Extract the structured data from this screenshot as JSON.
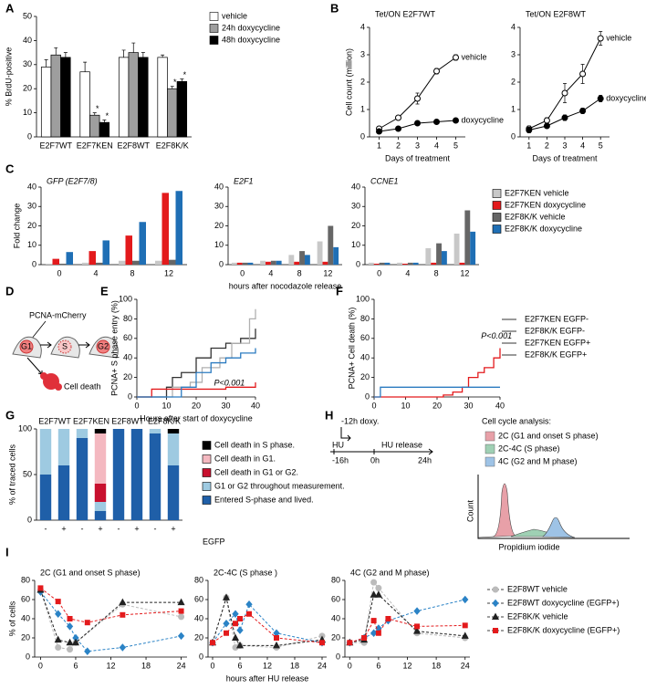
{
  "panel_labels": [
    "A",
    "B",
    "C",
    "D",
    "E",
    "F",
    "G",
    "H",
    "I"
  ],
  "diagrams": {
    "D": {
      "title": "PCNA-mCherry",
      "phases": [
        "G1",
        "S",
        "G2"
      ],
      "death": "Cell death"
    },
    "H": {
      "doxy": "-12h doxy.",
      "hu": "HU",
      "start": "-16h",
      "zero": "0h",
      "release": "HU release",
      "end": "24h",
      "analysis_title": "Cell cycle analysis:",
      "gates": [
        {
          "label": "2C (G1 and onset S phase)",
          "color": "#e8a0a8"
        },
        {
          "label": "2C-4C (S phase)",
          "color": "#9fd0b4"
        },
        {
          "label": "4C (G2 and M phase)",
          "color": "#9ec3e6"
        }
      ],
      "ylabel": "Count",
      "xlabel": "Propidium iodide"
    }
  },
  "chart_data": [
    {
      "type": "bar",
      "ylabel": "% BrdU-positive",
      "categories": [
        "E2F7WT",
        "E2F7KEN",
        "E2F8WT",
        "E2F8K/K"
      ],
      "ylim": [
        0,
        50
      ],
      "yticks": [
        0,
        10,
        20,
        30,
        40,
        50
      ],
      "legend": true,
      "series": [
        {
          "name": "vehicle",
          "color": "#ffffff",
          "values": [
            29,
            27,
            33,
            33
          ],
          "errors": [
            3,
            4,
            3,
            1
          ]
        },
        {
          "name": "24h doxycycline",
          "color": "#9e9e9e",
          "values": [
            34,
            9,
            35,
            20
          ],
          "errors": [
            3,
            1,
            4,
            1
          ],
          "marks": [
            null,
            "*",
            null,
            "*"
          ]
        },
        {
          "name": "48h doxycycline",
          "color": "#000000",
          "values": [
            33,
            6,
            33,
            23
          ],
          "errors": [
            2,
            1,
            2,
            1
          ],
          "marks": [
            null,
            "*",
            null,
            "*"
          ]
        }
      ]
    },
    {
      "type": "line",
      "title": "Tet/ON E2F7WT",
      "ylabel": "Cell count (million)",
      "xlabel": "Days of treatment",
      "x": [
        1,
        2,
        3,
        4,
        5
      ],
      "xlim": [
        0.5,
        5.5
      ],
      "xticks": [
        1,
        2,
        3,
        4,
        5
      ],
      "ylim": [
        0,
        4
      ],
      "yticks": [
        0,
        1,
        2,
        3,
        4
      ],
      "legend": "end",
      "series": [
        {
          "name": "vehicle",
          "color": "#000000",
          "marker": "open-circle",
          "values": [
            0.3,
            0.7,
            1.4,
            2.4,
            2.9
          ],
          "errors": [
            0.05,
            0.05,
            0.2,
            0.1,
            0.1
          ]
        },
        {
          "name": "doxycycline",
          "color": "#000000",
          "marker": "circle",
          "values": [
            0.2,
            0.3,
            0.5,
            0.55,
            0.6
          ],
          "errors": [
            0.02,
            0.03,
            0.05,
            0.05,
            0.05
          ]
        }
      ]
    },
    {
      "type": "line",
      "title": "Tet/ON E2F8WT",
      "xlabel": "Days of treatment",
      "x": [
        1,
        2,
        3,
        4,
        5
      ],
      "xlim": [
        0.5,
        5.5
      ],
      "xticks": [
        1,
        2,
        3,
        4,
        5
      ],
      "ylim": [
        0,
        4
      ],
      "yticks": [
        0,
        1,
        2,
        3,
        4
      ],
      "legend": "end",
      "series": [
        {
          "name": "vehicle",
          "color": "#000000",
          "marker": "open-circle",
          "values": [
            0.3,
            0.6,
            1.6,
            2.3,
            3.6
          ],
          "errors": [
            0.1,
            0.1,
            0.35,
            0.35,
            0.25
          ]
        },
        {
          "name": "doxycycline",
          "color": "#000000",
          "marker": "circle",
          "values": [
            0.25,
            0.4,
            0.7,
            0.95,
            1.4
          ],
          "errors": [
            0.1,
            0.05,
            0.1,
            0.1,
            0.12
          ]
        }
      ]
    },
    {
      "type": "bar",
      "title": "GFP (E2F7/8)",
      "ylabel": "Fold change",
      "categories": [
        "0",
        "4",
        "8",
        "12"
      ],
      "ylim": [
        0,
        40
      ],
      "yticks": [
        0,
        10,
        20,
        30,
        40
      ],
      "series": [
        {
          "color": "#c8c8c8",
          "values": [
            0.5,
            1,
            2,
            2
          ]
        },
        {
          "color": "#e31a1c",
          "values": [
            3,
            7,
            15,
            37
          ]
        },
        {
          "color": "#666666",
          "values": [
            0.5,
            1,
            2,
            2.5
          ]
        },
        {
          "color": "#1f6fb5",
          "values": [
            6.5,
            12.5,
            22,
            38
          ]
        }
      ]
    },
    {
      "type": "bar",
      "title": "E2F1",
      "xlabel": "hours after nocodazole release",
      "categories": [
        "0",
        "4",
        "8",
        "12"
      ],
      "ylim": [
        0,
        40
      ],
      "yticks": [
        0,
        10,
        20,
        30,
        40
      ],
      "series": [
        {
          "color": "#c8c8c8",
          "values": [
            1,
            2,
            5,
            12
          ]
        },
        {
          "color": "#e31a1c",
          "values": [
            1,
            1.5,
            1.5,
            1.5
          ]
        },
        {
          "color": "#666666",
          "values": [
            1,
            2,
            7,
            20
          ]
        },
        {
          "color": "#1f6fb5",
          "values": [
            1,
            2,
            5,
            9
          ]
        }
      ]
    },
    {
      "type": "bar",
      "title": "CCNE1",
      "categories": [
        "0",
        "4",
        "8",
        "12"
      ],
      "ylim": [
        0,
        40
      ],
      "yticks": [
        0,
        10,
        20,
        30,
        40
      ],
      "legend": true,
      "series": [
        {
          "name": "E2F7KEN vehicle",
          "color": "#c8c8c8",
          "values": [
            1,
            1,
            8.5,
            16
          ]
        },
        {
          "name": "E2F7KEN doxycycline",
          "color": "#e31a1c",
          "values": [
            0.5,
            0.5,
            1,
            1
          ]
        },
        {
          "name": "E2F8K/K vehicle",
          "color": "#666666",
          "values": [
            1,
            1,
            11,
            28
          ]
        },
        {
          "name": "E2F8K/K doxycycline",
          "color": "#1f6fb5",
          "values": [
            1,
            1,
            7,
            17
          ]
        }
      ]
    },
    {
      "type": "step",
      "ylabel": "PCNA+ S phase entry (%)",
      "xlabel": "Hours after start of doxycycline",
      "xlim": [
        0,
        40
      ],
      "xticks": [
        0,
        10,
        20,
        30,
        40
      ],
      "ylim": [
        0,
        100
      ],
      "yticks": [
        0,
        20,
        40,
        60,
        80,
        100
      ],
      "legend": true,
      "annotation": "P<0.001",
      "annotation_color": "#e31a1c",
      "series": [
        {
          "name": "E2F7KEN EGFP-",
          "color": "#333333",
          "x": [
            0,
            5,
            10,
            12,
            15,
            20,
            25,
            30,
            35,
            40
          ],
          "values": [
            0,
            0,
            10,
            20,
            25,
            40,
            50,
            55,
            60,
            70
          ]
        },
        {
          "name": "E2F8K/K EGFP-",
          "color": "#b0b0b0",
          "x": [
            0,
            10,
            12,
            18,
            22,
            28,
            32,
            38,
            40
          ],
          "values": [
            0,
            0,
            10,
            15,
            30,
            40,
            55,
            80,
            90
          ]
        },
        {
          "name": "E2F7KEN EGFP+",
          "color": "#e31a1c",
          "x": [
            0,
            5,
            30,
            40
          ],
          "values": [
            0,
            8,
            10,
            15
          ]
        },
        {
          "name": "E2F8K/K EGFP+",
          "color": "#2b7bc0",
          "x": [
            0,
            10,
            15,
            20,
            25,
            30,
            35,
            40
          ],
          "values": [
            0,
            0,
            10,
            25,
            35,
            40,
            45,
            50
          ]
        }
      ]
    },
    {
      "type": "step",
      "ylabel": "PCNA+ Cell death (%)",
      "xlim": [
        0,
        40
      ],
      "xticks": [
        0,
        10,
        20,
        30,
        40
      ],
      "ylim": [
        0,
        100
      ],
      "yticks": [
        0,
        20,
        40,
        60,
        80,
        100
      ],
      "annotation": "P<0.001",
      "annotation_color": "#e31a1c",
      "series": [
        {
          "color": "#e31a1c",
          "x": [
            0,
            22,
            25,
            28,
            30,
            33,
            35,
            38,
            40
          ],
          "values": [
            0,
            2,
            5,
            10,
            20,
            25,
            30,
            40,
            50
          ]
        },
        {
          "color": "#2b7bc0",
          "x": [
            0,
            2,
            40
          ],
          "values": [
            0,
            10,
            10
          ]
        }
      ]
    },
    {
      "type": "stacked_bar",
      "ylabel": "% of traced cells",
      "xlabel": "EGFP",
      "groups": [
        "E2F7WT",
        "E2F7KEN",
        "E2F8WT",
        "E2F8K/K"
      ],
      "categories": [
        "-",
        "+",
        "-",
        "+",
        "-",
        "+",
        "-",
        "+"
      ],
      "ylim": [
        0,
        100
      ],
      "yticks": [
        0,
        50,
        100
      ],
      "legend": true,
      "series": [
        {
          "name": "Cell death in S phase.",
          "color": "#000000",
          "values": [
            0,
            0,
            0,
            5,
            0,
            0,
            0,
            5
          ]
        },
        {
          "name": "Cell death in G1.",
          "color": "#f4b8c0",
          "values": [
            0,
            0,
            0,
            55,
            0,
            0,
            0,
            0
          ]
        },
        {
          "name": "Cell death in G1 or G2.",
          "color": "#c8102e",
          "values": [
            0,
            0,
            0,
            20,
            0,
            0,
            0,
            0
          ]
        },
        {
          "name": "G1 or G2 throughout measurement.",
          "color": "#9ecae1",
          "values": [
            50,
            40,
            10,
            10,
            0,
            0,
            5,
            35
          ]
        },
        {
          "name": "Entered S-phase and lived.",
          "color": "#1f5fa8",
          "values": [
            50,
            60,
            90,
            10,
            100,
            100,
            95,
            60
          ]
        }
      ]
    },
    {
      "type": "line",
      "title": "2C (G1 and onset S phase)",
      "ylabel": "% of cells",
      "xlim": [
        -1,
        25
      ],
      "xticks": [
        0,
        6,
        12,
        18,
        24
      ],
      "ylim": [
        0,
        80
      ],
      "yticks": [
        0,
        20,
        40,
        60,
        80
      ],
      "legend": true,
      "dashed": true,
      "series": [
        {
          "name": "E2F8WT vehicle",
          "color": "#bbbbbb",
          "marker": "circle",
          "x": [
            0,
            3,
            5,
            6,
            14,
            24
          ],
          "values": [
            70,
            10,
            8,
            15,
            55,
            42
          ]
        },
        {
          "name": "E2F8WT doxycycline (EGFP+)",
          "color": "#2b83c6",
          "marker": "diamond",
          "x": [
            0,
            3,
            5,
            6,
            8,
            14,
            24
          ],
          "values": [
            68,
            45,
            32,
            20,
            6,
            10,
            22
          ]
        },
        {
          "name": "E2F8K/K vehicle",
          "color": "#222222",
          "marker": "triangle",
          "x": [
            0,
            3,
            5,
            6,
            14,
            24
          ],
          "values": [
            70,
            18,
            15,
            15,
            57,
            57
          ]
        },
        {
          "name": "E2F8K/K doxycycline (EGFP+)",
          "color": "#e31a1c",
          "marker": "square",
          "x": [
            0,
            3,
            5,
            8,
            14,
            24
          ],
          "values": [
            72,
            58,
            40,
            36,
            44,
            48
          ]
        }
      ]
    },
    {
      "type": "line",
      "title": "2C-4C (S phase )",
      "xlabel": "hours after HU release",
      "xlim": [
        -1,
        25
      ],
      "xticks": [
        0,
        6,
        12,
        18,
        24
      ],
      "ylim": [
        0,
        80
      ],
      "yticks": [
        0,
        20,
        40,
        60,
        80
      ],
      "dashed": true,
      "series": [
        {
          "color": "#bbbbbb",
          "marker": "circle",
          "x": [
            0,
            3,
            5,
            6,
            14,
            24
          ],
          "values": [
            15,
            62,
            10,
            12,
            10,
            22
          ]
        },
        {
          "color": "#2b83c6",
          "marker": "diamond",
          "x": [
            0,
            3,
            5,
            6,
            8,
            14,
            24
          ],
          "values": [
            15,
            35,
            45,
            28,
            55,
            25,
            15
          ]
        },
        {
          "color": "#222222",
          "marker": "triangle",
          "x": [
            0,
            3,
            5,
            6,
            14,
            24
          ],
          "values": [
            15,
            62,
            20,
            12,
            12,
            18
          ]
        },
        {
          "color": "#e31a1c",
          "marker": "square",
          "x": [
            0,
            3,
            5,
            6,
            8,
            14,
            24
          ],
          "values": [
            15,
            25,
            35,
            40,
            45,
            20,
            15
          ]
        }
      ]
    },
    {
      "type": "line",
      "title": "4C (G2 and M phase)",
      "xlim": [
        -1,
        25
      ],
      "xticks": [
        0,
        6,
        12,
        18,
        24
      ],
      "ylim": [
        0,
        80
      ],
      "yticks": [
        0,
        20,
        40,
        60,
        80
      ],
      "dashed": true,
      "series": [
        {
          "color": "#bbbbbb",
          "marker": "circle",
          "x": [
            0,
            3,
            5,
            6,
            14,
            24
          ],
          "values": [
            15,
            15,
            78,
            72,
            25,
            20
          ]
        },
        {
          "color": "#2b83c6",
          "marker": "diamond",
          "x": [
            0,
            3,
            5,
            6,
            8,
            14,
            24
          ],
          "values": [
            15,
            20,
            25,
            30,
            38,
            48,
            60
          ]
        },
        {
          "color": "#222222",
          "marker": "triangle",
          "x": [
            0,
            3,
            5,
            6,
            14,
            24
          ],
          "values": [
            15,
            18,
            65,
            65,
            27,
            22
          ]
        },
        {
          "color": "#e31a1c",
          "marker": "square",
          "x": [
            0,
            3,
            5,
            6,
            8,
            14,
            24
          ],
          "values": [
            15,
            20,
            38,
            25,
            40,
            32,
            33
          ]
        }
      ]
    }
  ]
}
